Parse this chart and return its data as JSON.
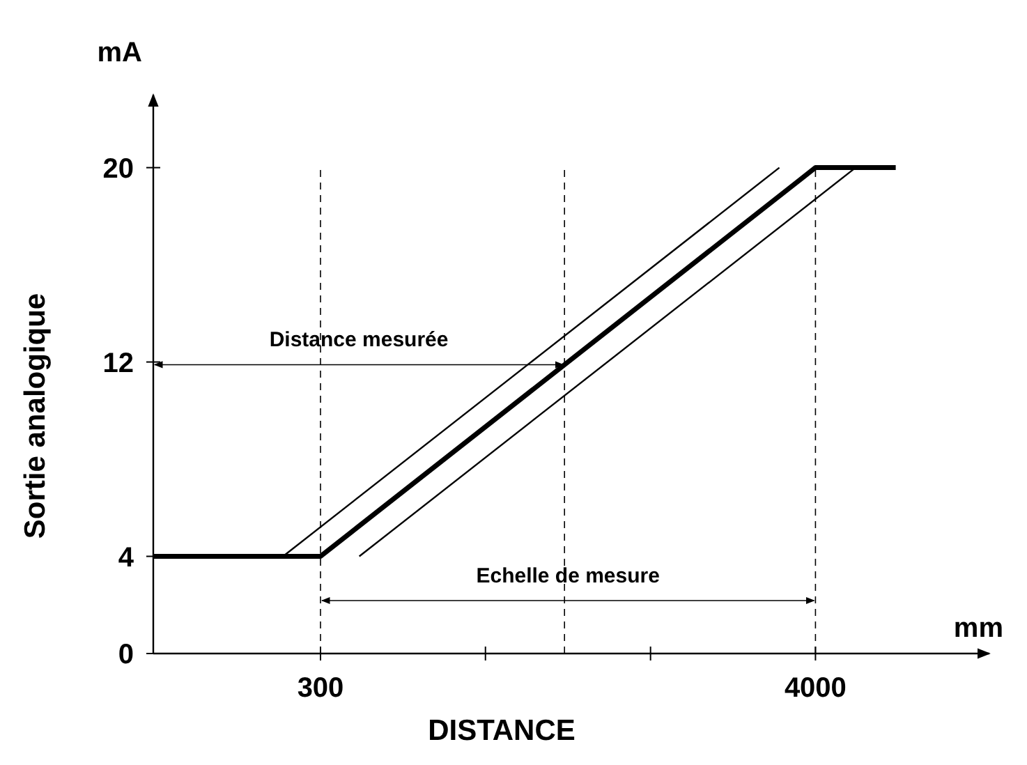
{
  "chart_data": {
    "type": "line",
    "xlabel": "DISTANCE",
    "ylabel": "Sortie analogique",
    "xlim": [
      -950,
      5300
    ],
    "xticks": [
      300,
      {
        "value": 1533,
        "label": null
      },
      {
        "value": 2767,
        "label": null
      },
      4000
    ],
    "ylim": [
      0,
      23
    ],
    "yticks": [
      0,
      4,
      12,
      20
    ],
    "grid": false,
    "marker": "none",
    "series": [
      {
        "color": "#000000",
        "x": [
          -950,
          300,
          4000,
          4600
        ],
        "values": [
          4,
          4,
          20,
          20
        ],
        "line_style": "solid"
      },
      {
        "color": "#000000",
        "x": [
          20,
          3730
        ],
        "values": [
          4,
          20
        ],
        "line_style": "solid"
      },
      {
        "color": "#000000",
        "x": [
          590,
          4300
        ],
        "values": [
          4,
          20
        ],
        "line_style": "solid"
      }
    ],
    "ref_lines": [
      {
        "axis": "x",
        "value": 300,
        "line_style": "dashed"
      },
      {
        "axis": "x",
        "value": 4000,
        "line_style": "dashed"
      },
      {
        "axis": "x",
        "value": 2124,
        "line_style": "dashed"
      }
    ],
    "annotations": [
      "mA",
      "mm",
      "Distance mesurée",
      "Echelle de mesure"
    ]
  }
}
